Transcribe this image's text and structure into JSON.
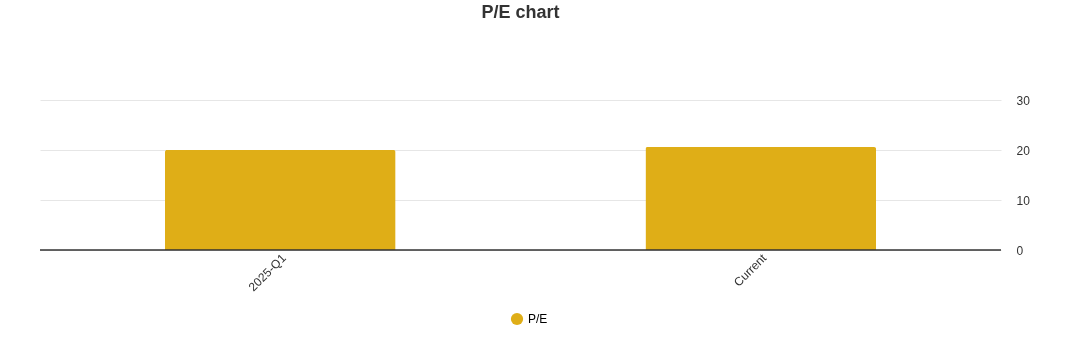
{
  "chart_data": {
    "type": "bar",
    "title": "P/E chart",
    "categories": [
      "2025-Q1",
      "Current"
    ],
    "series": [
      {
        "name": "P/E",
        "color": "#dfae17",
        "values": [
          20,
          20.6
        ]
      }
    ],
    "ylim": [
      0,
      30
    ],
    "yticks": [
      0,
      10,
      20,
      30
    ],
    "grid": "y",
    "legend": "bottom"
  }
}
